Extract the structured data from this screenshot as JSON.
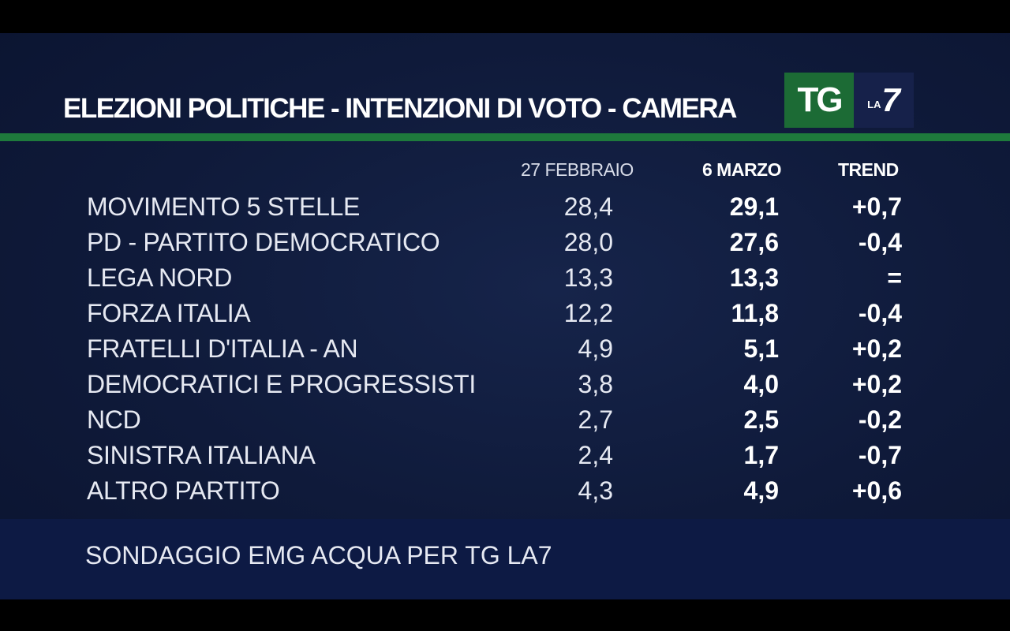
{
  "title": "ELEZIONI POLITICHE - INTENZIONI DI VOTO - CAMERA",
  "logo": {
    "tg": "TG",
    "la": "LA",
    "seven": "7"
  },
  "headers": {
    "date1": "27 FEBBRAIO",
    "date2": "6 MARZO",
    "trend": "TREND"
  },
  "rows": [
    {
      "party": "MOVIMENTO 5 STELLE",
      "v1": "28,4",
      "v2": "29,1",
      "trend": "+0,7"
    },
    {
      "party": "PD - PARTITO DEMOCRATICO",
      "v1": "28,0",
      "v2": "27,6",
      "trend": "-0,4"
    },
    {
      "party": "LEGA NORD",
      "v1": "13,3",
      "v2": "13,3",
      "trend": "="
    },
    {
      "party": "FORZA ITALIA",
      "v1": "12,2",
      "v2": "11,8",
      "trend": "-0,4"
    },
    {
      "party": "FRATELLI D'ITALIA - AN",
      "v1": "4,9",
      "v2": "5,1",
      "trend": "+0,2"
    },
    {
      "party": "DEMOCRATICI E PROGRESSISTI",
      "v1": "3,8",
      "v2": "4,0",
      "trend": "+0,2"
    },
    {
      "party": "NCD",
      "v1": "2,7",
      "v2": "2,5",
      "trend": "-0,2"
    },
    {
      "party": "SINISTRA ITALIANA",
      "v1": "2,4",
      "v2": "1,7",
      "trend": "-0,7"
    },
    {
      "party": "ALTRO PARTITO",
      "v1": "4,3",
      "v2": "4,9",
      "trend": "+0,6"
    }
  ],
  "footer": "SONDAGGIO EMG ACQUA PER TG LA7",
  "colors": {
    "background": "#0f1a3a",
    "accent_green": "#1e7a3c",
    "logo_green": "#1c6b35",
    "logo_blue": "#16214a"
  }
}
